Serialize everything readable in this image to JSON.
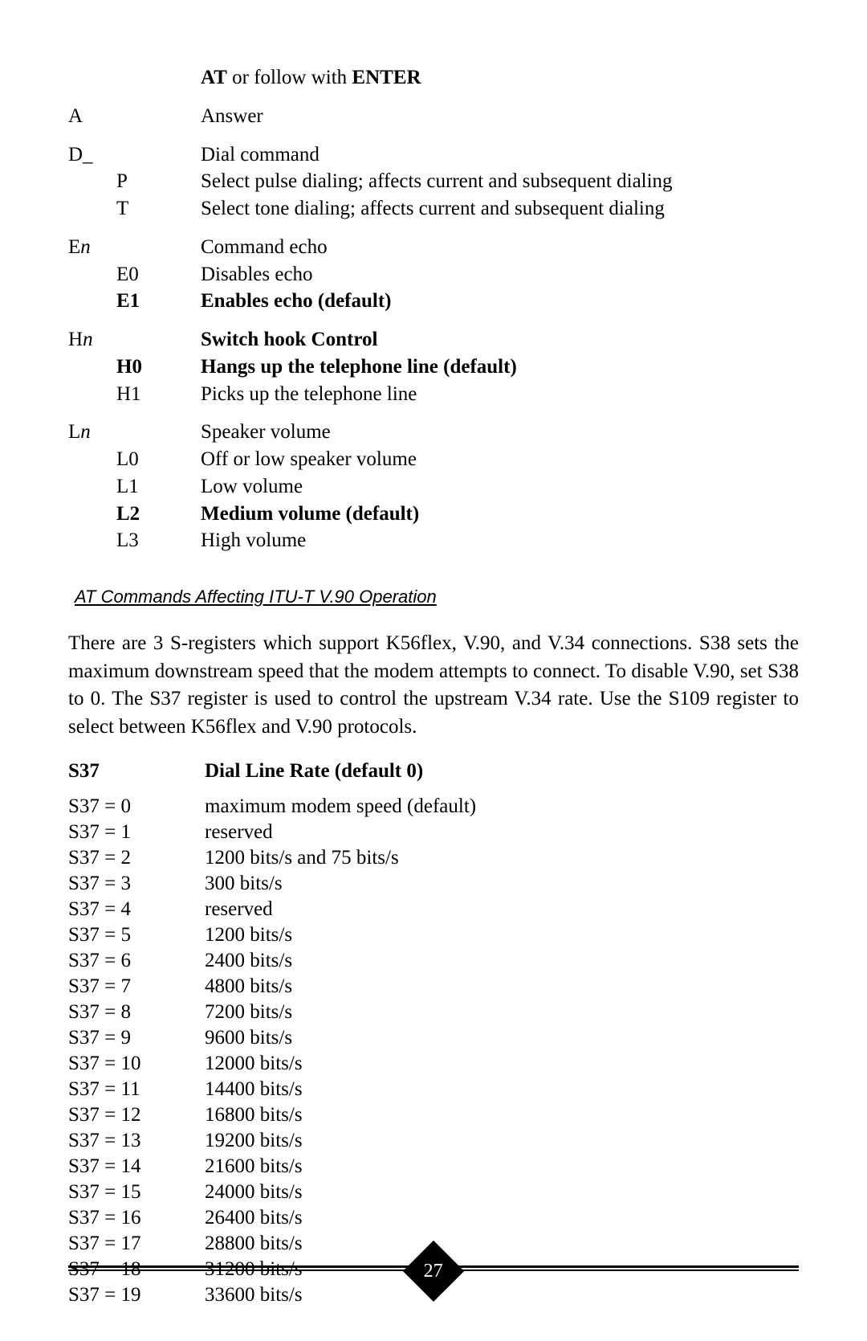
{
  "commands": {
    "intro_1": "AT",
    "intro_2": " or follow with ",
    "intro_3": "ENTER",
    "groups": [
      {
        "code": "A",
        "code_suffix": "",
        "title": "Answer",
        "title_bold": false,
        "options": []
      },
      {
        "code": "D_",
        "code_suffix": "",
        "title": "Dial command",
        "title_bold": false,
        "options": [
          {
            "key": "P",
            "desc": "Select pulse dialing; affects current and subsequent dialing",
            "bold": false
          },
          {
            "key": "T",
            "desc": "Select tone dialing; affects current and subsequent dialing",
            "bold": false
          }
        ]
      },
      {
        "code_prefix": "E",
        "code_var": "n",
        "title": "Command echo",
        "title_bold": false,
        "options": [
          {
            "key": "E0",
            "desc": "Disables echo",
            "bold": false
          },
          {
            "key": "E1",
            "desc": "Enables echo (default)",
            "bold": true
          }
        ]
      },
      {
        "code_prefix": "H",
        "code_var": "n",
        "title": "Switch hook Control",
        "title_bold": true,
        "options": [
          {
            "key": "H0",
            "desc": "Hangs up the telephone line (default)",
            "bold": true
          },
          {
            "key": "H1",
            "desc": "Picks up the telephone line",
            "bold": false
          }
        ]
      },
      {
        "code_prefix": "L",
        "code_var": "n",
        "title": "Speaker volume",
        "title_bold": false,
        "options": [
          {
            "key": "L0",
            "desc": "Off or low speaker volume",
            "bold": false
          },
          {
            "key": "L1",
            "desc": "Low volume",
            "bold": false
          },
          {
            "key": "L2",
            "desc": "Medium volume (default)",
            "bold": true
          },
          {
            "key": "L3",
            "desc": "High volume",
            "bold": false
          }
        ]
      }
    ]
  },
  "section_title": " AT Commands Affecting ITU-T V.90 Operation",
  "paragraph": "There are 3 S-registers which support K56flex, V.90, and V.34 connections. S38 sets the maximum downstream speed that the modem attempts to connect. To disable V.90, set S38 to 0. The S37 register is used to control the upstream V.34 rate. Use the S109 register to select between K56flex and V.90 protocols.",
  "register": {
    "header_key": "S37",
    "header_desc": "Dial Line Rate (default 0)",
    "rows": [
      {
        "key": "S37 = 0",
        "desc": "maximum modem speed (default)"
      },
      {
        "key": "S37 = 1",
        "desc": "reserved"
      },
      {
        "key": "S37 = 2",
        "desc": "1200 bits/s and 75 bits/s"
      },
      {
        "key": "S37 = 3",
        "desc": "300 bits/s"
      },
      {
        "key": "S37 = 4",
        "desc": "reserved"
      },
      {
        "key": "S37 = 5",
        "desc": "1200 bits/s"
      },
      {
        "key": "S37 = 6",
        "desc": "2400 bits/s"
      },
      {
        "key": "S37 = 7",
        "desc": "4800 bits/s"
      },
      {
        "key": "S37 = 8",
        "desc": "7200 bits/s"
      },
      {
        "key": "S37 = 9",
        "desc": "9600 bits/s"
      },
      {
        "key": "S37 = 10",
        "desc": "12000 bits/s"
      },
      {
        "key": "S37 = 11",
        "desc": "14400 bits/s"
      },
      {
        "key": "S37 = 12",
        "desc": "16800 bits/s"
      },
      {
        "key": "S37 = 13",
        "desc": "19200 bits/s"
      },
      {
        "key": "S37 = 14",
        "desc": "21600 bits/s"
      },
      {
        "key": "S37 = 15",
        "desc": "24000 bits/s"
      },
      {
        "key": "S37 = 16",
        "desc": "26400 bits/s"
      },
      {
        "key": "S37 = 17",
        "desc": "28800 bits/s"
      },
      {
        "key": "S37 = 18",
        "desc": "31200 bits/s"
      },
      {
        "key": "S37 = 19",
        "desc": "33600 bits/s"
      }
    ]
  },
  "page_number": "27"
}
